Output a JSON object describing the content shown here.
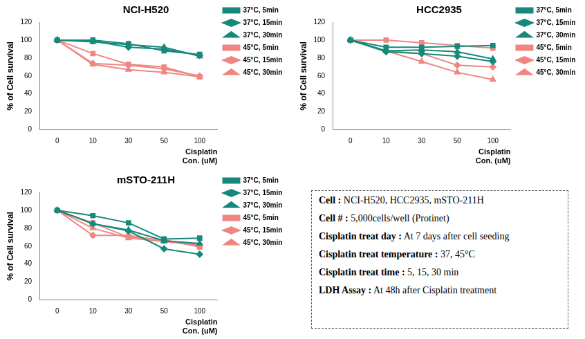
{
  "chart_data": [
    {
      "type": "line",
      "title": "NCI-H520",
      "y_label": "% of Cell survival",
      "x_label": "Cisplatin Con. (uM)",
      "categories": [
        0,
        10,
        30,
        50,
        100
      ],
      "ylim": [
        0,
        120
      ],
      "yticks": [
        0,
        20,
        40,
        60,
        80,
        100,
        120
      ],
      "grid": false,
      "legend": "right",
      "series": [
        {
          "name": "37°C, 5min",
          "color": "#16897a",
          "marker": "square",
          "line_style": "solid",
          "values": [
            100,
            100,
            96,
            88,
            84
          ]
        },
        {
          "name": "37°C, 15min",
          "color": "#16897a",
          "marker": "diamond",
          "line_style": "solid",
          "values": [
            100,
            99,
            92,
            90,
            83
          ]
        },
        {
          "name": "37°C, 30min",
          "color": "#16897a",
          "marker": "triangle",
          "line_style": "solid",
          "values": [
            100,
            98,
            95,
            92,
            82
          ]
        },
        {
          "name": "45°C, 5min",
          "color": "#f08682",
          "marker": "square",
          "line_style": "solid",
          "values": [
            100,
            85,
            73,
            70,
            59
          ]
        },
        {
          "name": "45°C, 15min",
          "color": "#f08682",
          "marker": "diamond",
          "line_style": "solid",
          "values": [
            100,
            74,
            72,
            68,
            60
          ]
        },
        {
          "name": "45°C, 30min",
          "color": "#f08682",
          "marker": "triangle",
          "line_style": "solid",
          "values": [
            100,
            73,
            67,
            64,
            59
          ]
        }
      ]
    },
    {
      "type": "line",
      "title": "HCC2935",
      "y_label": "% of Cell survival",
      "x_label": "Cisplatin Con. (uM)",
      "categories": [
        0,
        10,
        30,
        50,
        100
      ],
      "ylim": [
        0,
        120
      ],
      "yticks": [
        0,
        20,
        40,
        60,
        80,
        100,
        120
      ],
      "grid": false,
      "legend": "right",
      "series": [
        {
          "name": "37°C, 5min",
          "color": "#16897a",
          "marker": "square",
          "line_style": "solid",
          "values": [
            100,
            92,
            92,
            93,
            94
          ]
        },
        {
          "name": "37°C, 15min",
          "color": "#16897a",
          "marker": "diamond",
          "line_style": "solid",
          "values": [
            100,
            87,
            85,
            82,
            76
          ]
        },
        {
          "name": "37°C, 30min",
          "color": "#16897a",
          "marker": "triangle",
          "line_style": "solid",
          "values": [
            100,
            88,
            89,
            87,
            79
          ]
        },
        {
          "name": "45°C, 5min",
          "color": "#f08682",
          "marker": "square",
          "line_style": "solid",
          "values": [
            100,
            100,
            97,
            94,
            91
          ]
        },
        {
          "name": "45°C, 15min",
          "color": "#f08682",
          "marker": "diamond",
          "line_style": "solid",
          "values": [
            100,
            88,
            85,
            72,
            70
          ]
        },
        {
          "name": "45°C, 30min",
          "color": "#f08682",
          "marker": "triangle",
          "line_style": "solid",
          "values": [
            100,
            88,
            76,
            64,
            56
          ]
        }
      ]
    },
    {
      "type": "line",
      "title": "mSTO-211H",
      "y_label": "% of Cell survival",
      "x_label": "Cisplatin Con. (uM)",
      "categories": [
        0,
        10,
        30,
        50,
        100
      ],
      "ylim": [
        0,
        120
      ],
      "yticks": [
        0,
        20,
        40,
        60,
        80,
        100,
        120
      ],
      "grid": false,
      "legend": "right",
      "series": [
        {
          "name": "37°C, 5min",
          "color": "#16897a",
          "marker": "square",
          "line_style": "solid",
          "values": [
            100,
            94,
            86,
            68,
            69
          ]
        },
        {
          "name": "37°C, 15min",
          "color": "#16897a",
          "marker": "diamond",
          "line_style": "solid",
          "values": [
            100,
            85,
            77,
            57,
            51
          ]
        },
        {
          "name": "37°C, 30min",
          "color": "#16897a",
          "marker": "triangle",
          "line_style": "solid",
          "values": [
            100,
            85,
            78,
            66,
            63
          ]
        },
        {
          "name": "45°C, 5min",
          "color": "#f08682",
          "marker": "square",
          "line_style": "solid",
          "values": [
            100,
            86,
            70,
            67,
            59
          ]
        },
        {
          "name": "45°C, 15min",
          "color": "#f08682",
          "marker": "diamond",
          "line_style": "solid",
          "values": [
            100,
            72,
            72,
            66,
            62
          ]
        },
        {
          "name": "45°C, 30min",
          "color": "#f08682",
          "marker": "triangle",
          "line_style": "solid",
          "values": [
            100,
            80,
            69,
            65,
            61
          ]
        }
      ]
    }
  ],
  "text_box": [
    {
      "label": "Cell :",
      "value": "NCI-H520, HCC2935, mSTO-211H"
    },
    {
      "label": "Cell # :",
      "value": "5,000cells/well (Protinet)"
    },
    {
      "label": "Cisplatin treat day :",
      "value": "At 7 days after cell seeding"
    },
    {
      "label": "Cisplatin treat temperature :",
      "value": "37, 45°C"
    },
    {
      "label": "Cisplatin treat time :",
      "value": "5, 15, 30 min"
    },
    {
      "label": "LDH Assay :",
      "value": "At 48h after Cisplatin treatment"
    }
  ]
}
